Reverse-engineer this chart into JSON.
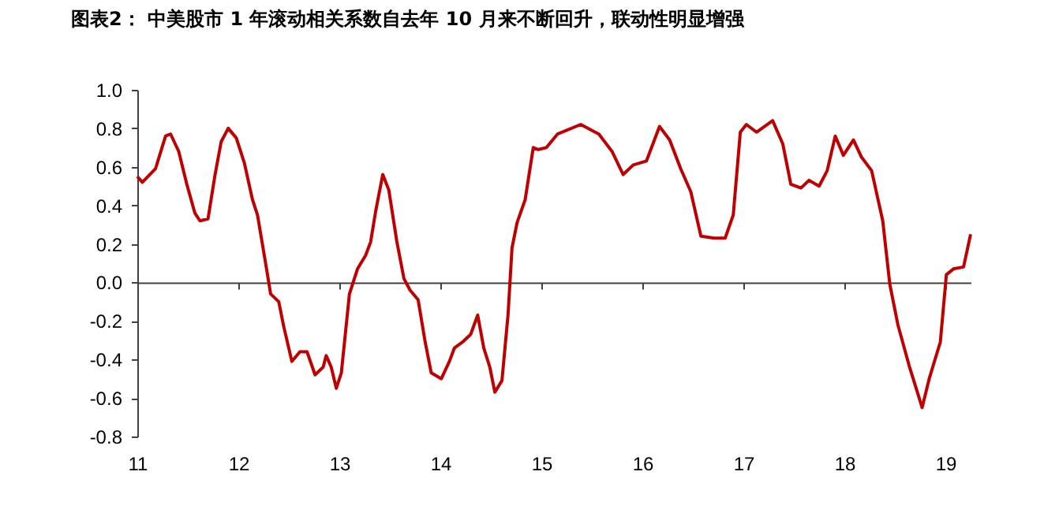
{
  "chart_data": {
    "type": "line",
    "title": "图表2： 中美股市 1 年滚动相关系数自去年 10 月来不断回升，联动性明显增强",
    "x": [
      11.0,
      11.05,
      11.18,
      11.28,
      11.33,
      11.41,
      11.49,
      11.57,
      11.62,
      11.7,
      11.77,
      11.83,
      11.9,
      11.98,
      12.06,
      12.14,
      12.19,
      12.27,
      12.32,
      12.4,
      12.45,
      12.53,
      12.61,
      12.68,
      12.76,
      12.84,
      12.87,
      12.92,
      12.97,
      13.02,
      13.1,
      13.18,
      13.26,
      13.31,
      13.36,
      13.43,
      13.49,
      13.57,
      13.64,
      13.7,
      13.78,
      13.85,
      13.91,
      14.01,
      14.09,
      14.14,
      14.22,
      14.3,
      14.37,
      14.43,
      14.49,
      14.54,
      14.61,
      14.67,
      14.71,
      14.76,
      14.84,
      14.92,
      14.97,
      15.05,
      15.16,
      15.39,
      15.57,
      15.7,
      15.81,
      15.91,
      16.04,
      16.17,
      16.27,
      16.38,
      16.48,
      16.58,
      16.71,
      16.82,
      16.9,
      16.97,
      17.03,
      17.13,
      17.29,
      17.39,
      17.47,
      17.57,
      17.65,
      17.75,
      17.83,
      17.91,
      17.99,
      18.09,
      18.17,
      18.27,
      18.38,
      18.45,
      18.53,
      18.64,
      18.77,
      18.84,
      18.95,
      19.01,
      19.08,
      19.18,
      19.25
    ],
    "series": [
      {
        "color": "#c00000",
        "values": [
          0.55,
          0.52,
          0.59,
          0.76,
          0.77,
          0.68,
          0.51,
          0.36,
          0.32,
          0.33,
          0.56,
          0.73,
          0.8,
          0.75,
          0.62,
          0.43,
          0.35,
          0.1,
          -0.06,
          -0.1,
          -0.23,
          -0.41,
          -0.36,
          -0.36,
          -0.48,
          -0.44,
          -0.38,
          -0.44,
          -0.55,
          -0.47,
          -0.06,
          0.07,
          0.14,
          0.21,
          0.37,
          0.56,
          0.48,
          0.21,
          0.02,
          -0.04,
          -0.09,
          -0.31,
          -0.47,
          -0.5,
          -0.41,
          -0.34,
          -0.31,
          -0.27,
          -0.17,
          -0.34,
          -0.44,
          -0.57,
          -0.51,
          -0.17,
          0.18,
          0.31,
          0.43,
          0.7,
          0.69,
          0.7,
          0.77,
          0.82,
          0.77,
          0.68,
          0.56,
          0.61,
          0.63,
          0.81,
          0.74,
          0.59,
          0.47,
          0.24,
          0.23,
          0.23,
          0.35,
          0.78,
          0.82,
          0.78,
          0.84,
          0.72,
          0.51,
          0.49,
          0.53,
          0.5,
          0.58,
          0.76,
          0.66,
          0.74,
          0.65,
          0.58,
          0.32,
          -0.01,
          -0.22,
          -0.43,
          -0.65,
          -0.5,
          -0.31,
          0.04,
          0.07,
          0.08,
          0.25
        ]
      }
    ],
    "xlim": [
      11,
      19.25
    ],
    "xticks": [
      11,
      12,
      13,
      14,
      15,
      16,
      17,
      18,
      19
    ],
    "ylim": [
      -0.8,
      1.0
    ],
    "yticks": [
      {
        "value": -0.8,
        "label": "-0.8"
      },
      {
        "value": -0.6,
        "label": "-0.6"
      },
      {
        "value": -0.4,
        "label": "-0.4"
      },
      {
        "value": -0.2,
        "label": "-0.2"
      },
      {
        "value": 0,
        "label": "0.0"
      },
      {
        "value": 0.2,
        "label": "0.2"
      },
      {
        "value": 0.4,
        "label": "0.4"
      },
      {
        "value": 0.6,
        "label": "0.6"
      },
      {
        "value": 0.8,
        "label": "0.8"
      },
      {
        "value": 1.0,
        "label": "1.0"
      }
    ],
    "legend": false,
    "line_style": "solid"
  }
}
